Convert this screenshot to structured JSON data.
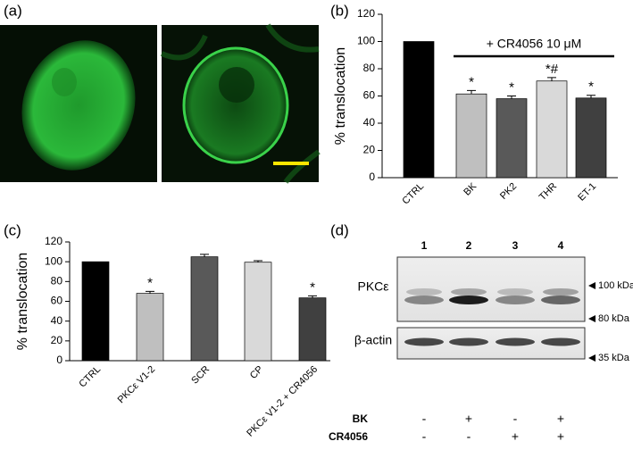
{
  "panel_labels": [
    "(a)",
    "(b)",
    "(c)",
    "(d)"
  ],
  "chart_data": [
    {
      "type": "bar",
      "y_label": "% translocation",
      "categories": [
        "CTRL",
        "BK",
        "PK2",
        "THR",
        "ET-1"
      ],
      "values": [
        100,
        61.5,
        58,
        71,
        58.5
      ],
      "errors": [
        0,
        2.5,
        2,
        2.5,
        2
      ],
      "colors": [
        "#000000",
        "#bfbfbf",
        "#595959",
        "#d9d9d9",
        "#404040"
      ],
      "annotations": [
        null,
        "*",
        "*",
        "*#",
        "*"
      ],
      "bracket_label": "+ CR4056 10 μM",
      "ylim": [
        0,
        120
      ],
      "yticks": [
        0,
        20,
        40,
        60,
        80,
        100,
        120
      ]
    },
    {
      "type": "bar",
      "y_label": "% translocation",
      "categories": [
        "CTRL",
        "PKCε V1-2",
        "SCR",
        "CP",
        "PKCε V1-2 + CR4056"
      ],
      "values": [
        100,
        68,
        105,
        99.5,
        63.5
      ],
      "errors": [
        0,
        2,
        2.5,
        1.5,
        2
      ],
      "colors": [
        "#000000",
        "#bfbfbf",
        "#595959",
        "#d9d9d9",
        "#404040"
      ],
      "annotations": [
        null,
        "*",
        null,
        null,
        "*"
      ],
      "ylim": [
        0,
        120
      ],
      "yticks": [
        0,
        20,
        40,
        60,
        80,
        100,
        120
      ]
    }
  ],
  "blot": {
    "lanes": [
      "1",
      "2",
      "3",
      "4"
    ],
    "rows": [
      "PKCε",
      "β-actin"
    ],
    "markers": [
      "100 kDa",
      "80 kDa",
      "35 kDa"
    ],
    "treatments": [
      {
        "name": "BK",
        "signs": [
          "-",
          "+",
          "-",
          "+"
        ]
      },
      {
        "name": "CR4056",
        "signs": [
          "-",
          "-",
          "+",
          "+"
        ]
      }
    ]
  }
}
